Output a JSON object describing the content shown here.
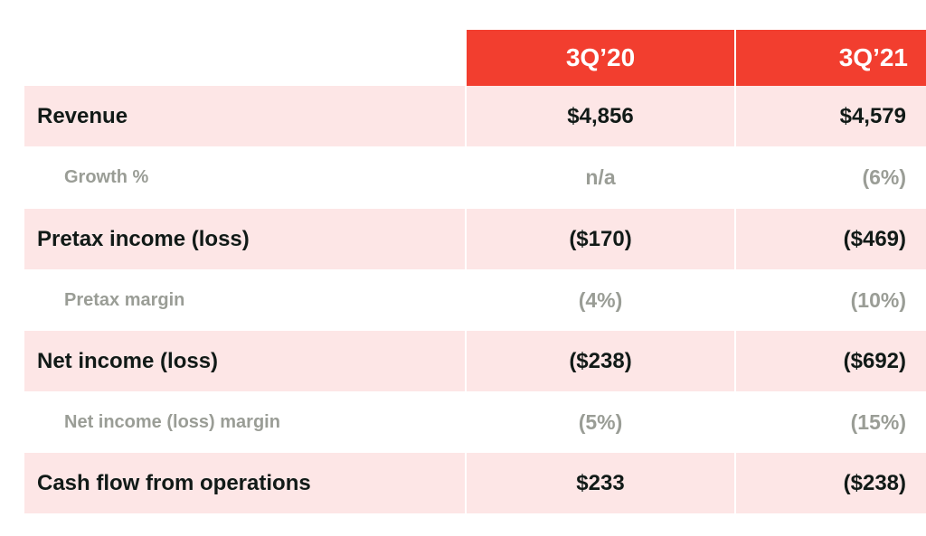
{
  "table": {
    "columns": [
      "3Q’20",
      "3Q’21"
    ],
    "rows": [
      {
        "label": "Revenue",
        "q320": "$4,856",
        "q321": "$4,579"
      },
      {
        "label": "Growth %",
        "q320": "n/a",
        "q321": "(6%)"
      },
      {
        "label": "Pretax income (loss)",
        "q320": "($170)",
        "q321": "($469)"
      },
      {
        "label": "Pretax margin",
        "q320": "(4%)",
        "q321": "(10%)"
      },
      {
        "label": "Net income (loss)",
        "q320": "($238)",
        "q321": "($692)"
      },
      {
        "label": "Net income (loss) margin",
        "q320": "(5%)",
        "q321": "(15%)"
      },
      {
        "label": "Cash flow from operations",
        "q320": "$233",
        "q321": "($238)"
      }
    ]
  },
  "colors": {
    "header_bg": "#f23e2f",
    "row_shade": "#fde6e6",
    "main_text": "#111a17",
    "sub_text": "#9a9d96"
  }
}
